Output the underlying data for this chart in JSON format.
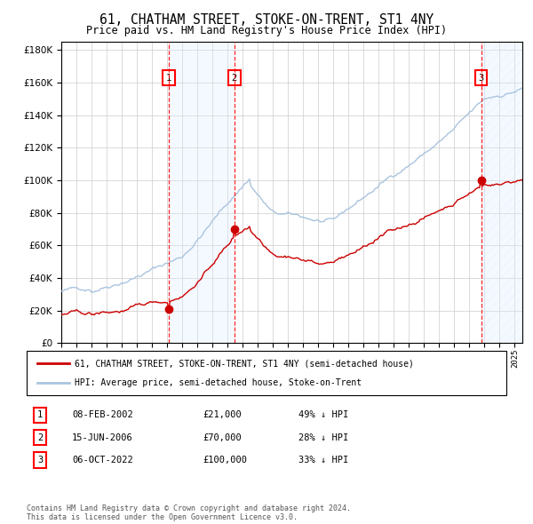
{
  "title": "61, CHATHAM STREET, STOKE-ON-TRENT, ST1 4NY",
  "subtitle": "Price paid vs. HM Land Registry's House Price Index (HPI)",
  "hpi_color": "#aac4df",
  "price_color": "#cc0000",
  "dot_color": "#cc0000",
  "background_color": "#ffffff",
  "grid_color": "#cccccc",
  "sale_shade_color": "#ddeeff",
  "ylim": [
    0,
    185000
  ],
  "yticks": [
    0,
    20000,
    40000,
    60000,
    80000,
    100000,
    120000,
    140000,
    160000,
    180000
  ],
  "xlim_start": 1995.0,
  "xlim_end": 2025.5,
  "sales": [
    {
      "date_num": 2002.1,
      "price": 21000,
      "label": "1"
    },
    {
      "date_num": 2006.45,
      "price": 70000,
      "label": "2"
    },
    {
      "date_num": 2022.77,
      "price": 100000,
      "label": "3"
    }
  ],
  "legend_entries": [
    "61, CHATHAM STREET, STOKE-ON-TRENT, ST1 4NY (semi-detached house)",
    "HPI: Average price, semi-detached house, Stoke-on-Trent"
  ],
  "table_rows": [
    {
      "num": "1",
      "date": "08-FEB-2002",
      "price": "£21,000",
      "hpi": "49% ↓ HPI"
    },
    {
      "num": "2",
      "date": "15-JUN-2006",
      "price": "£70,000",
      "hpi": "28% ↓ HPI"
    },
    {
      "num": "3",
      "date": "06-OCT-2022",
      "price": "£100,000",
      "hpi": "33% ↓ HPI"
    }
  ],
  "footnote": "Contains HM Land Registry data © Crown copyright and database right 2024.\nThis data is licensed under the Open Government Licence v3.0."
}
